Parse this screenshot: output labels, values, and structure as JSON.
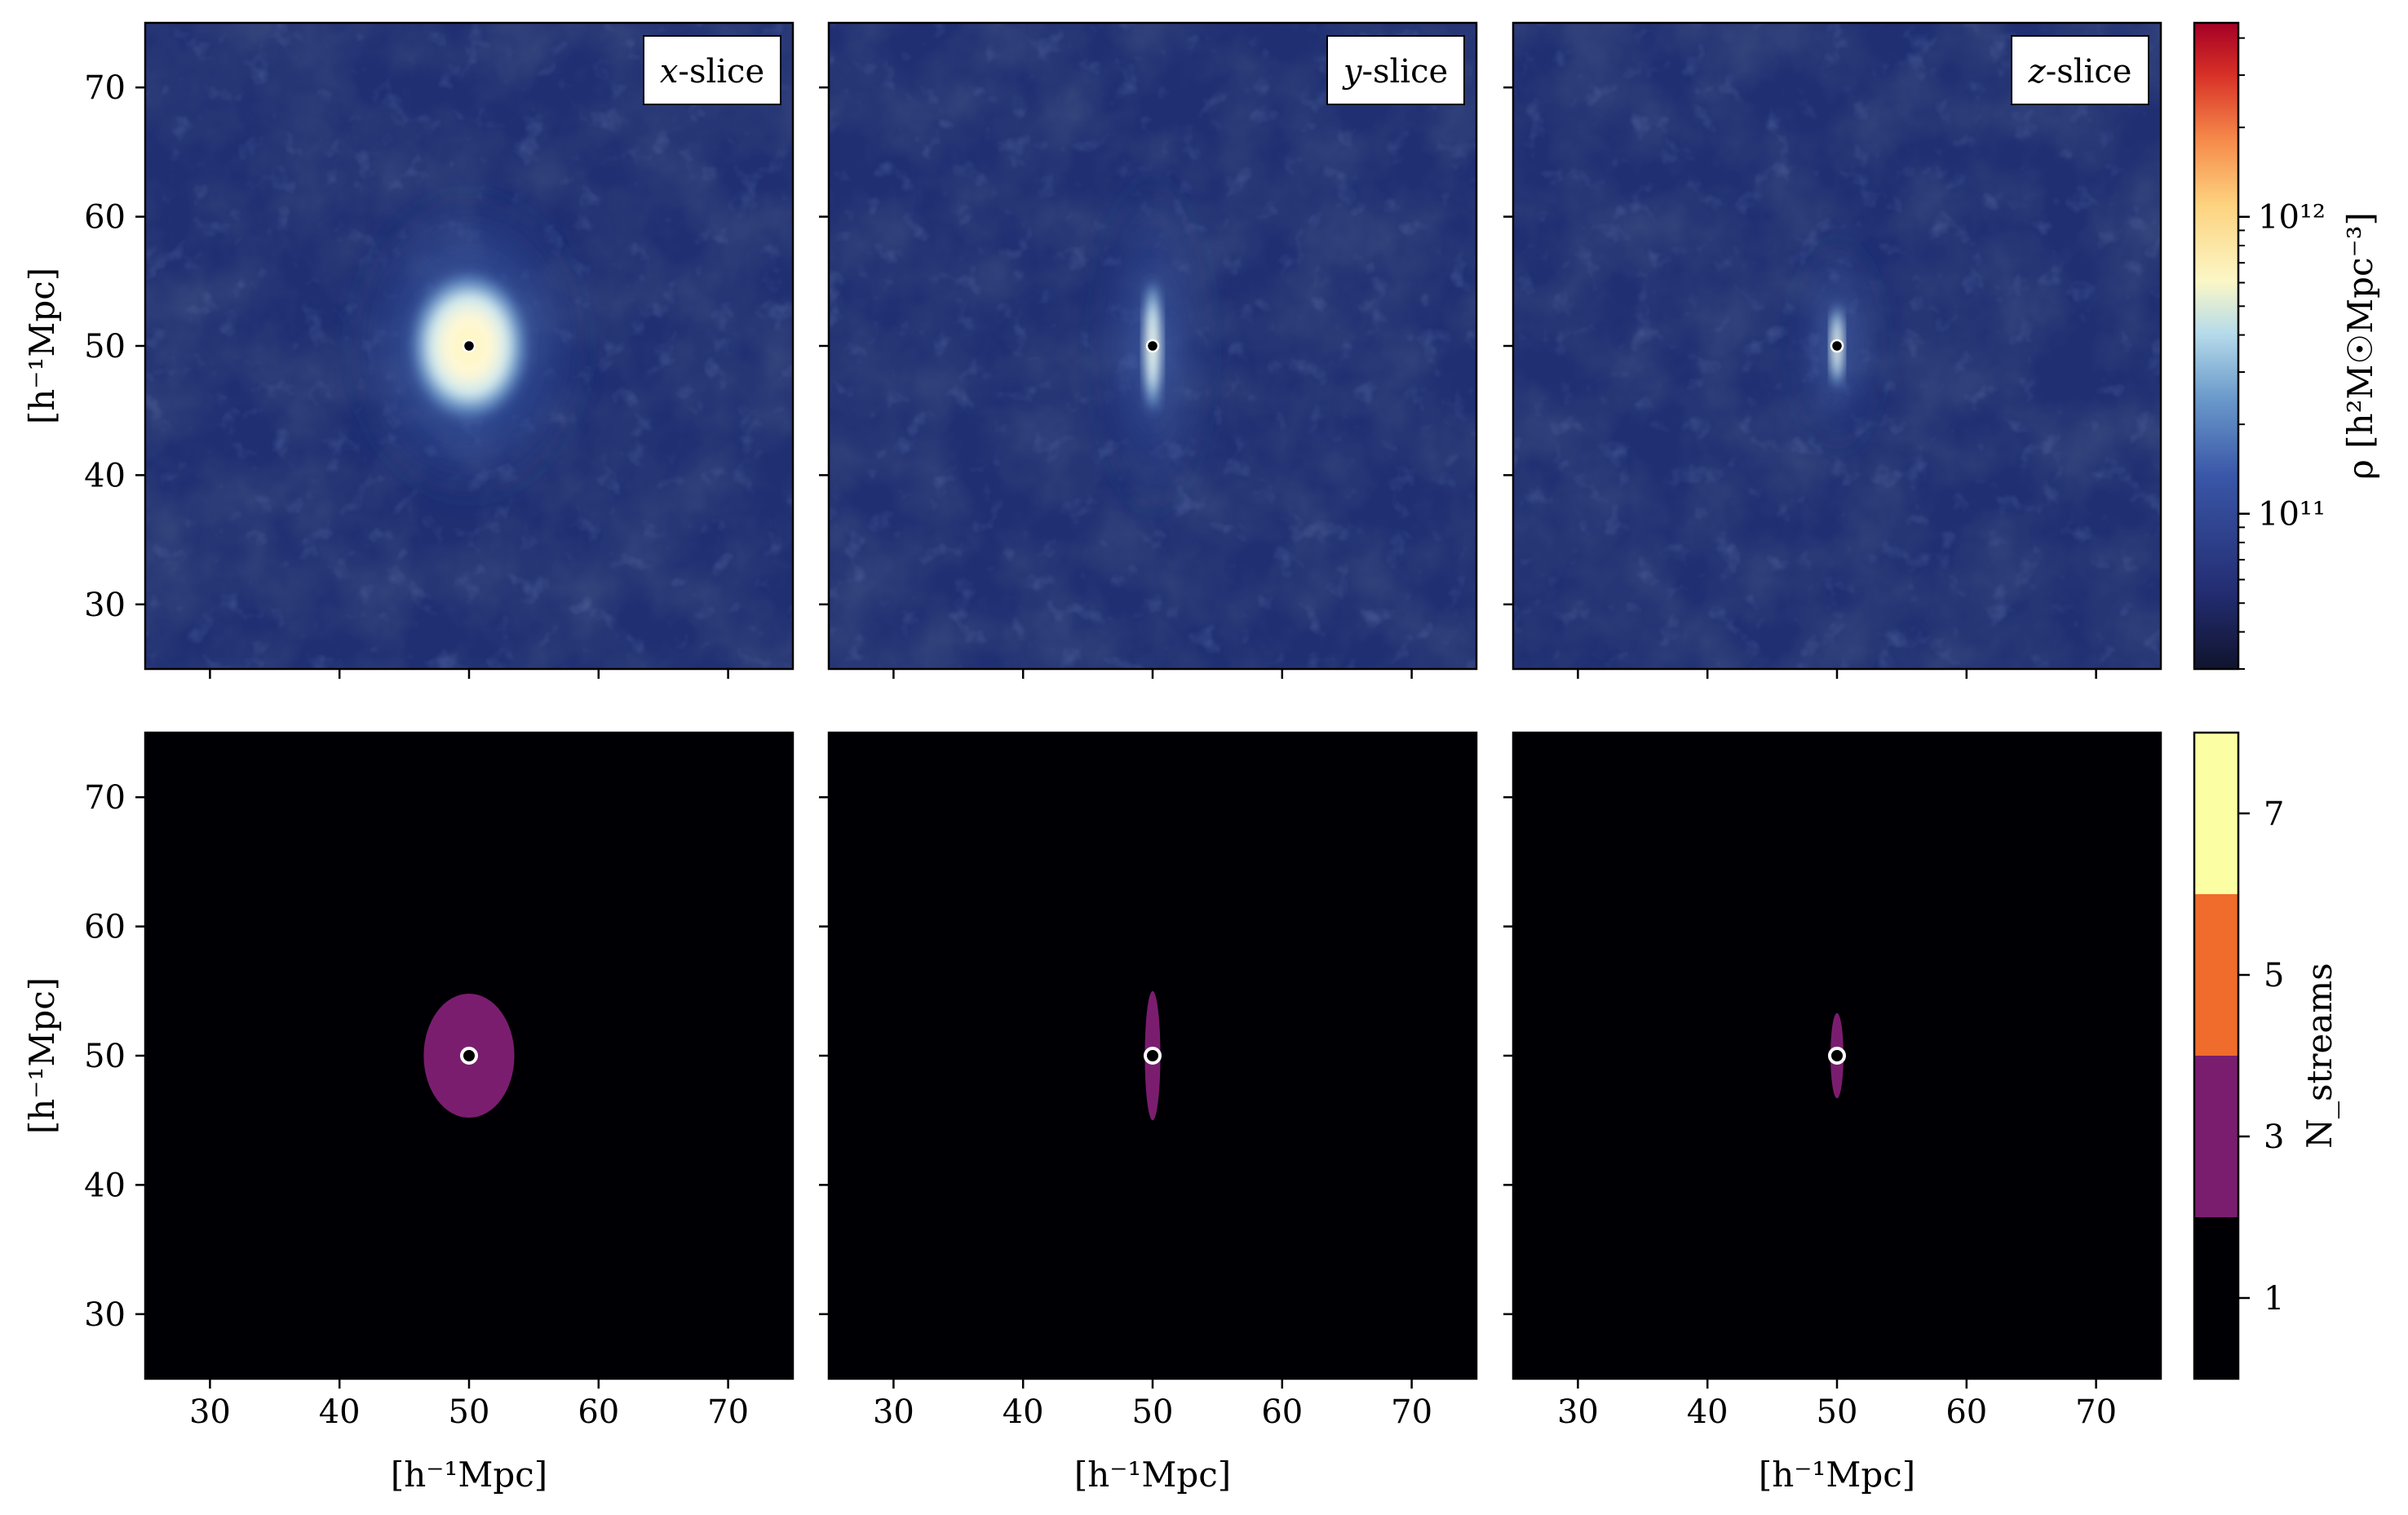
{
  "chart_data": {
    "type": "heatmap",
    "layout": "2 rows x 3 columns of image panels with shared axes",
    "panels": [
      {
        "row": "density",
        "slice": "x-slice",
        "shape": "ellipse",
        "rx": 4.0,
        "ry": 5.2
      },
      {
        "row": "density",
        "slice": "y-slice",
        "shape": "filament",
        "rx": 0.8,
        "ry": 5.5
      },
      {
        "row": "density",
        "slice": "z-slice",
        "shape": "filament",
        "rx": 0.6,
        "ry": 3.5
      },
      {
        "row": "streams",
        "slice": "x-slice",
        "region_value": 3,
        "rx": 3.5,
        "ry": 4.8
      },
      {
        "row": "streams",
        "slice": "y-slice",
        "region_value": 3,
        "rx": 0.6,
        "ry": 5.0
      },
      {
        "row": "streams",
        "slice": "z-slice",
        "region_value": 3,
        "rx": 0.5,
        "ry": 3.3
      }
    ],
    "slice_labels": [
      "-slice",
      "-slice",
      "-slice"
    ],
    "slice_letters": [
      "x",
      "y",
      "z"
    ],
    "marker": {
      "x": 50,
      "y": 50
    },
    "xlim": [
      25,
      75
    ],
    "ylim": [
      25,
      75
    ],
    "xticks": [
      30,
      40,
      50,
      60,
      70
    ],
    "yticks": [
      30,
      40,
      50,
      60,
      70
    ],
    "xlabel": "[h⁻¹Mpc]",
    "ylabel": "[h⁻¹Mpc]",
    "density_colorbar": {
      "label": "ρ [h²M☉Mpc⁻³]",
      "scale": "log",
      "range": [
        30000000000.0,
        4500000000000.0
      ],
      "ticks": [
        "10¹¹",
        "10¹²"
      ],
      "tick_values": [
        100000000000.0,
        1000000000000.0
      ],
      "colormap": "RdYlBu reversed"
    },
    "streams_colorbar": {
      "label": "N_streams",
      "ticks": [
        "1",
        "3",
        "5",
        "7"
      ],
      "levels": [
        {
          "value": 1,
          "color": "#000004"
        },
        {
          "value": 3,
          "color": "#7b1d6f"
        },
        {
          "value": 5,
          "color": "#f06c2c"
        },
        {
          "value": 7,
          "color": "#fcfea4"
        }
      ]
    },
    "colors": {
      "density_background": "#1f2f72",
      "density_core": "#fff3b8",
      "density_halo": "#a9d3e8",
      "marker_dot": "#000000",
      "marker_ring": "#ffffff"
    }
  }
}
